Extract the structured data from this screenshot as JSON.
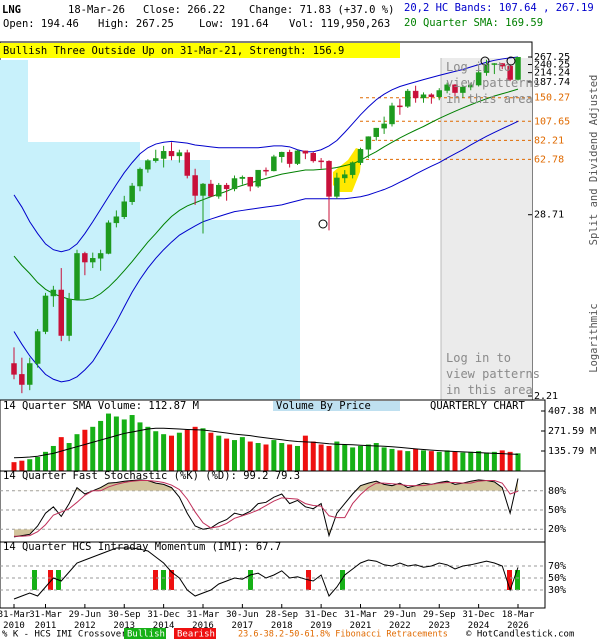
{
  "header": {
    "ticker": "LNG",
    "date": "18-Mar-26",
    "close": "Close: 266.22",
    "change": "Change: 71.83 (+37.0 %)",
    "open": "Open: 194.46",
    "high": "High: 267.25",
    "low": "Low: 191.64",
    "volume": "Vol: 119,950,263"
  },
  "notes": {
    "login": "Log in to view patterns in this area",
    "side": [
      "Split and Dividend Adjusted",
      "Logarithmic"
    ]
  },
  "footer": {
    "crossover": "% K - HCS IMI Crossover:",
    "bullish": "Bullish",
    "bearish": "Bearish",
    "fibonacci": "23.6-38.2-50-61.8% Fibonacci Retracements",
    "copyright": "© HotCandlestick.com"
  },
  "chart_data": [
    {
      "type": "candlestick",
      "annotation": "Bullish Three Outside Up on 31-Mar-21, Strength: 156.9",
      "categories": [
        "31-Mar 2010",
        null,
        null,
        null,
        "31-Mar 2011",
        null,
        null,
        null,
        null,
        "29-Jun 2012",
        null,
        null,
        null,
        null,
        "30-Sep 2013",
        null,
        null,
        null,
        null,
        "31-Dec 2014",
        null,
        null,
        null,
        null,
        "31-Mar 2016",
        null,
        null,
        null,
        null,
        "30-Jun 2017",
        null,
        null,
        null,
        null,
        "28-Sep 2018",
        null,
        null,
        null,
        null,
        "31-Dec 2019",
        null,
        null,
        null,
        null,
        "31-Mar 2021",
        null,
        null,
        null,
        null,
        "29-Jun 2022",
        null,
        null,
        null,
        null,
        "29-Sep 2023",
        null,
        null,
        null,
        null,
        "31-Dec 2024",
        null,
        null,
        null,
        null,
        "18-Mar 2026"
      ],
      "open": [
        3.5,
        3.0,
        2.6,
        3.5,
        5.5,
        9.1,
        9.9,
        5.2,
        8.7,
        16.6,
        14.7,
        15.5,
        16.6,
        25.6,
        27.9,
        34.5,
        43.1,
        54.7,
        61.7,
        63.6,
        70.4,
        66.0,
        69.1,
        50.0,
        37.7,
        44.3,
        37.3,
        43.6,
        41.4,
        47.9,
        48.8,
        43.0,
        53.9,
        53.4,
        65.2,
        69.5,
        59.2,
        70.8,
        68.5,
        61.5,
        61.2,
        37.2,
        48.3,
        50.6,
        60.0,
        72.4,
        86.6,
        97.7,
        103.7,
        133.9,
        133.0,
        165.0,
        149.9,
        156.7,
        152.4,
        166.4,
        180.3,
        161.6,
        174.8,
        179.8,
        214.4,
        241.3,
        243.6,
        235.0,
        194.46
      ],
      "high": [
        4.4,
        3.8,
        3.8,
        5.7,
        9.5,
        10.5,
        13.5,
        9.5,
        17.5,
        17.0,
        16.8,
        17.5,
        26.5,
        30.5,
        37.5,
        45.0,
        56.0,
        63.0,
        72.0,
        76.0,
        80.0,
        72.0,
        72.0,
        55.0,
        45.0,
        47.0,
        45.0,
        45.0,
        50.0,
        50.0,
        49.0,
        54.0,
        56.0,
        67.0,
        70.0,
        72.0,
        72.0,
        71.0,
        70.0,
        64.0,
        62.0,
        52.0,
        54.0,
        61.0,
        74.0,
        87.0,
        98.0,
        115.0,
        140.0,
        148.0,
        170.0,
        178.0,
        162.0,
        160.0,
        172.0,
        186.0,
        182.0,
        180.0,
        185.0,
        228.0,
        257.0,
        245.0,
        245.0,
        240.0,
        267.25
      ],
      "low": [
        2.8,
        2.3,
        2.4,
        3.3,
        5.3,
        7.8,
        4.8,
        4.8,
        8.6,
        12.2,
        13.5,
        13.0,
        16.4,
        24.0,
        27.0,
        33.0,
        40.0,
        52.0,
        60.0,
        56.0,
        62.0,
        60.0,
        48.0,
        33.0,
        22.0,
        37.0,
        36.0,
        35.0,
        40.0,
        44.0,
        40.0,
        42.0,
        50.0,
        53.0,
        60.0,
        56.0,
        58.0,
        63.0,
        60.0,
        55.0,
        23.0,
        36.0,
        45.0,
        48.0,
        58.0,
        64.0,
        82.0,
        90.0,
        100.0,
        118.0,
        130.0,
        140.0,
        140.0,
        138.0,
        145.0,
        160.0,
        152.0,
        150.0,
        167.0,
        176.0,
        205.0,
        210.0,
        225.0,
        190.0,
        191.64
      ],
      "close": [
        3.0,
        2.6,
        3.5,
        5.5,
        9.1,
        9.9,
        5.2,
        8.7,
        16.6,
        14.7,
        15.5,
        16.6,
        25.6,
        27.9,
        34.5,
        43.1,
        54.7,
        61.7,
        63.6,
        70.4,
        66.0,
        69.1,
        50.0,
        37.7,
        44.3,
        37.3,
        43.6,
        41.4,
        47.9,
        48.8,
        43.0,
        53.9,
        53.4,
        65.2,
        69.5,
        59.2,
        70.8,
        68.5,
        61.5,
        61.2,
        37.2,
        48.3,
        50.6,
        60.0,
        72.4,
        86.6,
        97.7,
        103.7,
        133.9,
        133.0,
        165.0,
        149.9,
        156.7,
        152.4,
        166.4,
        180.3,
        161.6,
        174.8,
        179.8,
        214.4,
        241.3,
        243.6,
        235.0,
        194.39,
        266.22
      ],
      "up_color": "#1e9a1e",
      "down_color": "#c8103a",
      "series": [
        {
          "name": "20,2 HC Bands: 107.64 , 267.19",
          "color": "#0000cc",
          "upper": [
            38,
            32,
            26,
            22,
            19,
            17.5,
            17,
            17.5,
            19,
            22,
            26,
            31,
            37,
            44,
            52,
            60,
            68,
            74,
            78,
            80,
            81,
            80,
            79,
            77,
            76,
            75,
            74,
            74,
            74,
            74,
            74,
            74,
            75,
            76,
            76,
            75,
            72,
            70,
            70,
            72,
            76,
            82,
            92,
            104,
            118,
            132,
            146,
            158,
            168,
            176,
            182,
            188,
            194,
            200,
            206,
            212,
            218,
            224,
            232,
            240,
            248,
            255,
            260,
            264,
            267.19
          ],
          "lower": [
            5.5,
            4.6,
            3.9,
            3.4,
            3.0,
            2.8,
            2.7,
            2.75,
            2.9,
            3.2,
            3.6,
            4.3,
            5.2,
            6.3,
            7.8,
            9.6,
            11.5,
            13.5,
            15.5,
            17.5,
            19.5,
            21.5,
            23,
            24.5,
            26,
            27,
            28,
            29,
            30,
            30.5,
            31,
            31.5,
            32,
            32.5,
            33,
            34,
            35,
            36,
            36,
            36,
            36,
            36,
            36,
            36.5,
            37,
            38,
            39.5,
            41,
            43,
            45.5,
            48,
            51,
            54,
            57,
            60,
            64,
            68,
            72,
            77,
            82,
            87,
            92,
            97,
            102,
            107.64
          ]
        },
        {
          "name": "20 Quarter SMA: 169.59",
          "color": "#008000",
          "values": [
            16,
            14,
            12.5,
            11,
            10,
            9.4,
            9,
            8.7,
            8.6,
            8.6,
            8.8,
            9.4,
            10.3,
            11.5,
            13,
            14.8,
            17,
            19.5,
            22,
            25,
            28,
            30.5,
            32.5,
            34,
            35.5,
            37,
            38.5,
            40,
            42,
            43.5,
            45,
            46.5,
            48,
            49.5,
            51,
            52,
            53,
            54,
            54,
            54.5,
            55,
            56,
            57.5,
            59,
            62,
            66,
            70,
            75,
            80,
            85,
            90,
            95,
            100,
            106,
            112,
            118,
            124,
            130,
            136,
            142,
            148,
            154,
            159,
            164,
            169.59
          ]
        }
      ],
      "log": true,
      "ylim": [
        2.21,
        267.25
      ],
      "yticks": [
        267.25,
        240.25,
        214.24,
        187.74,
        28.71,
        2.21
      ],
      "fib_levels": [
        150.27,
        107.65,
        82.21,
        62.78
      ],
      "fib_color": "#e06a00"
    },
    {
      "type": "bar",
      "title": "14 Quarter SMA Volume: 112.87 M",
      "annotations": [
        "Volume By Price",
        "QUARTERLY CHART"
      ],
      "values": [
        60,
        70,
        80,
        95,
        130,
        170,
        230,
        190,
        250,
        280,
        300,
        340,
        390,
        370,
        350,
        380,
        330,
        300,
        270,
        250,
        240,
        260,
        280,
        300,
        290,
        260,
        240,
        220,
        210,
        230,
        200,
        190,
        180,
        210,
        190,
        180,
        170,
        240,
        200,
        180,
        170,
        200,
        180,
        160,
        170,
        180,
        190,
        160,
        150,
        140,
        135,
        150,
        140,
        135,
        130,
        140,
        130,
        125,
        130,
        135,
        125,
        130,
        140,
        130,
        120
      ],
      "sma": [
        90,
        92,
        95,
        100,
        110,
        120,
        135,
        150,
        165,
        180,
        195,
        210,
        225,
        240,
        255,
        265,
        275,
        285,
        290,
        290,
        288,
        285,
        282,
        280,
        278,
        272,
        265,
        258,
        250,
        245,
        240,
        232,
        225,
        218,
        212,
        205,
        200,
        198,
        195,
        190,
        185,
        182,
        180,
        178,
        175,
        172,
        170,
        168,
        165,
        160,
        155,
        150,
        146,
        142,
        138,
        135,
        132,
        130,
        127,
        125,
        122,
        120,
        118,
        115,
        112.87
      ],
      "up_color": "#16b016",
      "down_color": "#ee1010",
      "sma_color": "#000000",
      "ylim": [
        0,
        407.38
      ],
      "yticks": [
        {
          "value": 407.38,
          "label": "407.38 M"
        },
        {
          "value": 271.59,
          "label": "271.59 M"
        },
        {
          "value": 135.79,
          "label": "135.79 M"
        }
      ]
    },
    {
      "type": "line",
      "title": "14 Quarter Fast Stochastic (%K) (%D): 99.2 79.3",
      "shade_extremes": true,
      "shade_color": "#d2c49c",
      "series": [
        {
          "color": "#000000",
          "values": [
            8,
            10,
            12,
            25,
            45,
            55,
            40,
            60,
            85,
            75,
            80,
            85,
            92,
            93,
            95,
            96,
            97,
            96,
            92,
            90,
            85,
            70,
            45,
            25,
            20,
            22,
            30,
            35,
            45,
            42,
            48,
            60,
            62,
            70,
            75,
            60,
            65,
            55,
            52,
            60,
            10,
            45,
            60,
            75,
            88,
            92,
            95,
            90,
            88,
            92,
            85,
            88,
            92,
            90,
            93,
            95,
            90,
            92,
            95,
            97,
            96,
            94,
            85,
            45,
            99.2
          ]
        },
        {
          "color": "#c0305a",
          "values": [
            9,
            9,
            10,
            16,
            27,
            42,
            47,
            52,
            62,
            73,
            80,
            80,
            86,
            90,
            93,
            95,
            96,
            96,
            95,
            93,
            89,
            82,
            67,
            47,
            30,
            22,
            24,
            29,
            37,
            41,
            45,
            50,
            57,
            64,
            69,
            68,
            67,
            60,
            57,
            56,
            41,
            38,
            38,
            60,
            74,
            85,
            92,
            92,
            91,
            90,
            88,
            88,
            88,
            90,
            92,
            93,
            93,
            92,
            92,
            95,
            96,
            96,
            92,
            75,
            79.3
          ]
        }
      ],
      "ylim": [
        0,
        100
      ],
      "yticks": [
        {
          "value": 80,
          "label": "80%"
        },
        {
          "value": 50,
          "label": "50%"
        },
        {
          "value": 20,
          "label": "20%"
        }
      ]
    },
    {
      "type": "line",
      "title": "14 Quarter HCS Intraday Momentum (IMI): 67.7",
      "series": [
        {
          "color": "#000000",
          "values": [
            15,
            20,
            25,
            20,
            35,
            50,
            45,
            60,
            75,
            80,
            85,
            90,
            95,
            100,
            100,
            100,
            98,
            95,
            85,
            75,
            60,
            50,
            30,
            20,
            25,
            30,
            40,
            45,
            50,
            48,
            55,
            58,
            50,
            55,
            62,
            50,
            52,
            48,
            45,
            55,
            20,
            35,
            55,
            65,
            75,
            80,
            78,
            72,
            70,
            75,
            70,
            72,
            68,
            70,
            75,
            72,
            65,
            70,
            72,
            75,
            78,
            75,
            70,
            30,
            67.7
          ]
        }
      ],
      "ylim": [
        0,
        100
      ],
      "yticks": [
        {
          "value": 70,
          "label": "70%"
        },
        {
          "value": 50,
          "label": "50%"
        },
        {
          "value": 30,
          "label": "30%"
        }
      ]
    }
  ]
}
